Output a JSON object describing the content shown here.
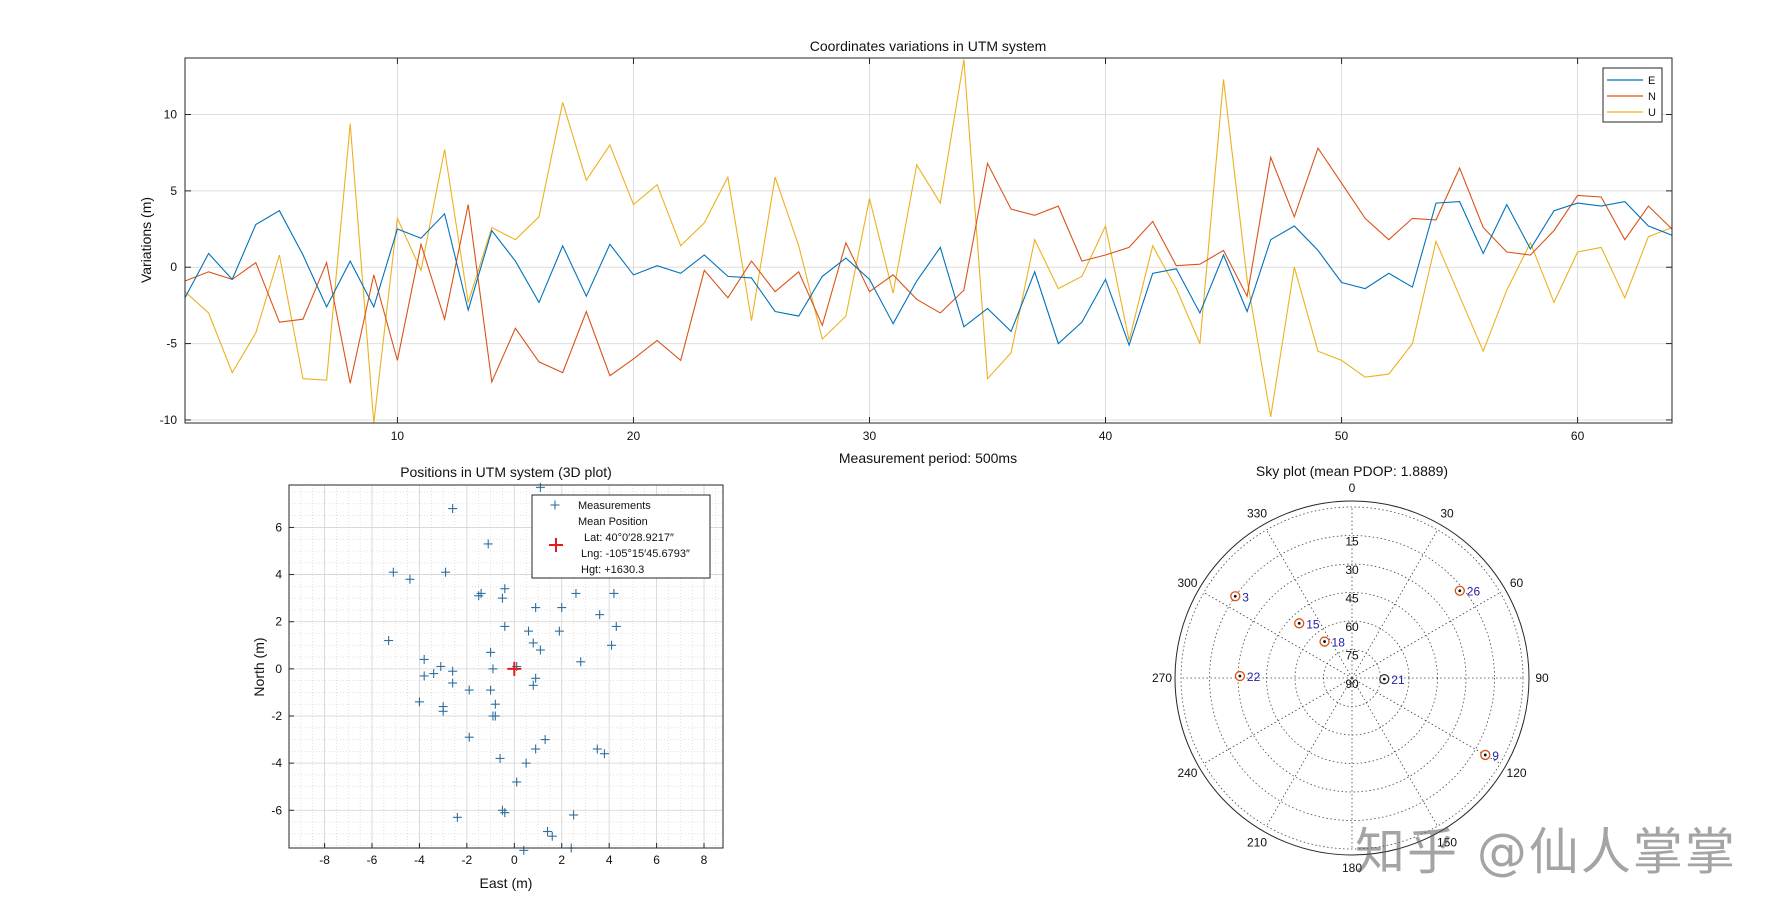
{
  "chart_data": [
    {
      "id": "variations",
      "type": "line",
      "title": "Coordinates variations in UTM system",
      "xlabel": "Measurement period: 500ms",
      "ylabel": "Variations (m)",
      "xlim": [
        1,
        64
      ],
      "ylim": [
        -10.2,
        13.7
      ],
      "xticks": [
        10,
        20,
        30,
        40,
        50,
        60
      ],
      "yticks": [
        -10,
        -5,
        0,
        5,
        10
      ],
      "grid": true,
      "legend_position": "top-right",
      "x": [
        1,
        2,
        3,
        4,
        5,
        6,
        7,
        8,
        9,
        10,
        11,
        12,
        13,
        14,
        15,
        16,
        17,
        18,
        19,
        20,
        21,
        22,
        23,
        24,
        25,
        26,
        27,
        28,
        29,
        30,
        31,
        32,
        33,
        34,
        35,
        36,
        37,
        38,
        39,
        40,
        41,
        42,
        43,
        44,
        45,
        46,
        47,
        48,
        49,
        50,
        51,
        52,
        53,
        54,
        55,
        56,
        57,
        58,
        59,
        60,
        61,
        62,
        63,
        64
      ],
      "series": [
        {
          "name": "E",
          "color": "#0072BD",
          "values": [
            -2.0,
            0.9,
            -0.8,
            2.8,
            3.7,
            0.8,
            -2.6,
            0.4,
            -2.6,
            2.5,
            1.9,
            3.5,
            -2.8,
            2.4,
            0.4,
            -2.3,
            1.4,
            -1.9,
            1.5,
            -0.5,
            0.1,
            -0.4,
            0.8,
            -0.6,
            -0.7,
            -2.9,
            -3.2,
            -0.6,
            0.6,
            -0.8,
            -3.7,
            -0.9,
            1.3,
            -3.9,
            -2.7,
            -4.2,
            -0.3,
            -5.0,
            -3.6,
            -0.8,
            -5.1,
            -0.4,
            -0.1,
            -3.0,
            0.8,
            -2.9,
            1.8,
            2.7,
            1.1,
            -1.0,
            -1.4,
            -0.4,
            -1.3,
            4.2,
            4.3,
            0.9,
            4.1,
            1.2,
            3.7,
            4.2,
            4.0,
            4.3,
            2.7,
            2.1
          ]
        },
        {
          "name": "N",
          "color": "#D95319",
          "values": [
            -0.9,
            -0.3,
            -0.8,
            0.3,
            -3.6,
            -3.4,
            0.3,
            -7.6,
            -0.5,
            -6.1,
            1.5,
            -3.4,
            4.1,
            -7.5,
            -4.0,
            -6.2,
            -6.9,
            -2.9,
            -7.1,
            -6.0,
            -4.8,
            -6.1,
            -0.2,
            -2.0,
            0.4,
            -1.6,
            -0.3,
            -3.8,
            1.6,
            -1.6,
            -0.5,
            -2.1,
            -3.0,
            -1.5,
            6.8,
            3.8,
            3.4,
            4.0,
            0.4,
            0.8,
            1.3,
            3.0,
            0.1,
            0.2,
            1.1,
            -1.9,
            7.2,
            3.3,
            7.8,
            5.5,
            3.2,
            1.8,
            3.2,
            3.1,
            6.5,
            2.6,
            1.0,
            0.8,
            2.4,
            4.7,
            4.6,
            1.8,
            4.0,
            2.5
          ]
        },
        {
          "name": "U",
          "color": "#EDB120",
          "values": [
            -1.6,
            -3.0,
            -6.9,
            -4.3,
            0.8,
            -7.3,
            -7.4,
            9.4,
            -10.2,
            3.2,
            -0.2,
            7.7,
            -2.3,
            2.6,
            1.8,
            3.3,
            10.8,
            5.7,
            8.0,
            4.1,
            5.4,
            1.4,
            2.9,
            5.9,
            -3.5,
            5.9,
            1.4,
            -4.7,
            -3.2,
            4.5,
            -1.7,
            6.7,
            4.2,
            13.6,
            -7.3,
            -5.6,
            1.8,
            -1.4,
            -0.6,
            2.7,
            -4.8,
            1.4,
            -1.4,
            -5.0,
            12.3,
            -0.8,
            -9.8,
            0.0,
            -5.5,
            -6.1,
            -7.2,
            -7.0,
            -5.0,
            1.7,
            -1.9,
            -5.5,
            -1.5,
            1.6,
            -2.3,
            1.0,
            1.3,
            -2.0,
            2.0,
            2.6
          ]
        }
      ]
    },
    {
      "id": "positions",
      "type": "scatter",
      "title": "Positions in UTM system (3D plot)",
      "xlabel": "East (m)",
      "ylabel": "North (m)",
      "xlim": [
        -9.5,
        8.8
      ],
      "ylim": [
        -7.6,
        7.8
      ],
      "xticks": [
        -8,
        -6,
        -4,
        -2,
        0,
        2,
        4,
        6,
        8
      ],
      "yticks": [
        -6,
        -4,
        -2,
        0,
        2,
        4,
        6
      ],
      "grid": "minor",
      "legend_position": "top-right",
      "legend": {
        "measurements": "Measurements",
        "mean_title": "Mean Position",
        "lat": "Lat: 40°0′28.9217″",
        "lng": "Lng: -105°15′45.6793″",
        "hgt": "Hgt: +1630.3"
      },
      "marker_color": "#2E6E9E",
      "mean_color": "#E41A1C",
      "mean": [
        0,
        0
      ],
      "points": [
        [
          -2.6,
          6.8
        ],
        [
          1.1,
          7.7
        ],
        [
          -1.1,
          5.3
        ],
        [
          -5.1,
          4.1
        ],
        [
          -4.4,
          3.8
        ],
        [
          -2.9,
          4.1
        ],
        [
          -1.5,
          3.1
        ],
        [
          -1.4,
          3.2
        ],
        [
          -0.4,
          3.4
        ],
        [
          -0.5,
          3.0
        ],
        [
          0.9,
          2.6
        ],
        [
          2.6,
          3.2
        ],
        [
          4.2,
          3.2
        ],
        [
          3.6,
          2.3
        ],
        [
          4.3,
          1.8
        ],
        [
          2.0,
          2.6
        ],
        [
          -0.4,
          1.8
        ],
        [
          0.6,
          1.6
        ],
        [
          1.9,
          1.6
        ],
        [
          4.1,
          1.0
        ],
        [
          -5.3,
          1.2
        ],
        [
          0.8,
          1.1
        ],
        [
          1.1,
          0.8
        ],
        [
          -1.0,
          0.7
        ],
        [
          -3.8,
          0.4
        ],
        [
          -3.1,
          0.1
        ],
        [
          2.8,
          0.3
        ],
        [
          -2.6,
          -0.1
        ],
        [
          -3.4,
          -0.2
        ],
        [
          -3.8,
          -0.3
        ],
        [
          -0.9,
          0.0
        ],
        [
          0.1,
          0.1
        ],
        [
          0.9,
          -0.4
        ],
        [
          -2.6,
          -0.6
        ],
        [
          -1.9,
          -0.9
        ],
        [
          0.8,
          -0.7
        ],
        [
          -1.0,
          -0.9
        ],
        [
          -4.0,
          -1.4
        ],
        [
          -0.8,
          -1.5
        ],
        [
          -3.0,
          -1.6
        ],
        [
          -3.0,
          -1.8
        ],
        [
          -0.9,
          -2.0
        ],
        [
          -0.8,
          -2.0
        ],
        [
          -1.9,
          -2.9
        ],
        [
          1.3,
          -3.0
        ],
        [
          0.9,
          -3.4
        ],
        [
          3.5,
          -3.4
        ],
        [
          3.8,
          -3.6
        ],
        [
          -0.6,
          -3.8
        ],
        [
          0.5,
          -4.0
        ],
        [
          0.1,
          -4.8
        ],
        [
          -0.5,
          -6.0
        ],
        [
          -0.4,
          -6.1
        ],
        [
          -2.4,
          -6.3
        ],
        [
          2.5,
          -6.2
        ],
        [
          1.4,
          -6.9
        ],
        [
          1.6,
          -7.1
        ],
        [
          2.4,
          -7.6
        ],
        [
          0.4,
          -7.7
        ]
      ]
    },
    {
      "id": "skyplot",
      "type": "scatter",
      "title": "Sky plot (mean PDOP: 1.8889)",
      "azimuth_labels": [
        "0",
        "30",
        "60",
        "90",
        "120",
        "150",
        "180",
        "210",
        "240",
        "270",
        "300",
        "330"
      ],
      "elevation_labels": [
        "15",
        "30",
        "45",
        "60",
        "75",
        "90"
      ],
      "label_color": "#2222AA",
      "satellites": [
        {
          "prn": "3",
          "azimuth": 305,
          "elevation": 15,
          "ring_color": "#D95319"
        },
        {
          "prn": "26",
          "azimuth": 51,
          "elevation": 17,
          "ring_color": "#D95319"
        },
        {
          "prn": "15",
          "azimuth": 316,
          "elevation": 50,
          "ring_color": "#D95319"
        },
        {
          "prn": "18",
          "azimuth": 323,
          "elevation": 66,
          "ring_color": "#D95319"
        },
        {
          "prn": "22",
          "azimuth": 271,
          "elevation": 31,
          "ring_color": "#D95319"
        },
        {
          "prn": "21",
          "azimuth": 92,
          "elevation": 73,
          "ring_color": "#333333"
        },
        {
          "prn": "9",
          "azimuth": 120,
          "elevation": 9,
          "ring_color": "#D95319"
        }
      ]
    }
  ],
  "watermark": {
    "text": "知乎 @仙人掌掌"
  }
}
